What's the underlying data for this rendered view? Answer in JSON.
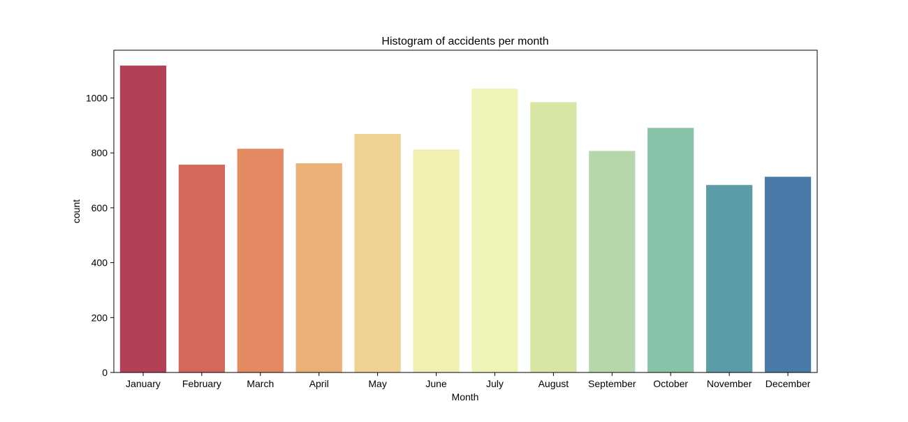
{
  "chart_data": {
    "type": "bar",
    "title": "Histogram of accidents per month",
    "xlabel": "Month",
    "ylabel": "count",
    "categories": [
      "January",
      "February",
      "March",
      "April",
      "May",
      "June",
      "July",
      "August",
      "September",
      "October",
      "November",
      "December"
    ],
    "values": [
      1118,
      757,
      815,
      762,
      869,
      812,
      1034,
      985,
      807,
      891,
      683,
      713
    ],
    "ylim": [
      0,
      1174
    ],
    "yticks": [
      0,
      200,
      400,
      600,
      800,
      1000
    ],
    "grid": false,
    "legend": "none",
    "colors": [
      "#b34156",
      "#d4695b",
      "#e38a63",
      "#e9b077",
      "#efd293",
      "#f3eeb2",
      "#eff3b8",
      "#d7e6a5",
      "#b5d7ab",
      "#88c2a8",
      "#5b9ca6",
      "#4a7aa8"
    ]
  }
}
